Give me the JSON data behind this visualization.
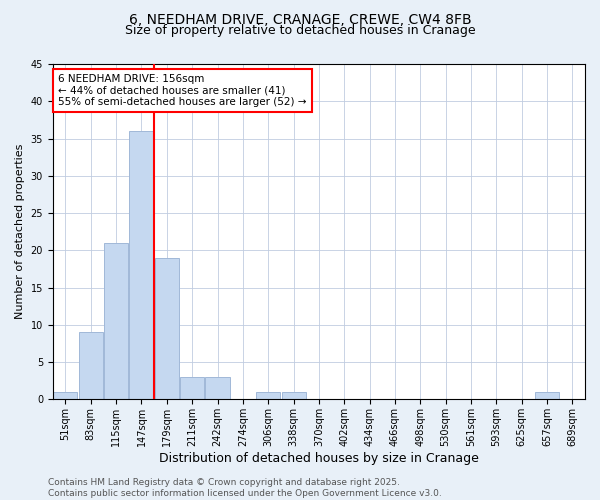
{
  "title": "6, NEEDHAM DRIVE, CRANAGE, CREWE, CW4 8FB",
  "subtitle": "Size of property relative to detached houses in Cranage",
  "xlabel": "Distribution of detached houses by size in Cranage",
  "ylabel": "Number of detached properties",
  "categories": [
    "51sqm",
    "83sqm",
    "115sqm",
    "147sqm",
    "179sqm",
    "211sqm",
    "242sqm",
    "274sqm",
    "306sqm",
    "338sqm",
    "370sqm",
    "402sqm",
    "434sqm",
    "466sqm",
    "498sqm",
    "530sqm",
    "561sqm",
    "593sqm",
    "625sqm",
    "657sqm",
    "689sqm"
  ],
  "values": [
    1,
    9,
    21,
    36,
    19,
    3,
    3,
    0,
    1,
    1,
    0,
    0,
    0,
    0,
    0,
    0,
    0,
    0,
    0,
    1,
    0
  ],
  "bar_color": "#c5d8f0",
  "bar_edge_color": "#a0b8d8",
  "vline_x": 3.5,
  "vline_color": "red",
  "annotation_text": "6 NEEDHAM DRIVE: 156sqm\n← 44% of detached houses are smaller (41)\n55% of semi-detached houses are larger (52) →",
  "annotation_box_color": "white",
  "annotation_box_edge": "red",
  "ylim": [
    0,
    45
  ],
  "yticks": [
    0,
    5,
    10,
    15,
    20,
    25,
    30,
    35,
    40,
    45
  ],
  "bg_color": "#e8f0f8",
  "plot_bg": "white",
  "footer": "Contains HM Land Registry data © Crown copyright and database right 2025.\nContains public sector information licensed under the Open Government Licence v3.0.",
  "title_fontsize": 10,
  "subtitle_fontsize": 9,
  "xlabel_fontsize": 9,
  "ylabel_fontsize": 8,
  "tick_fontsize": 7,
  "footer_fontsize": 6.5,
  "ann_fontsize": 7.5
}
